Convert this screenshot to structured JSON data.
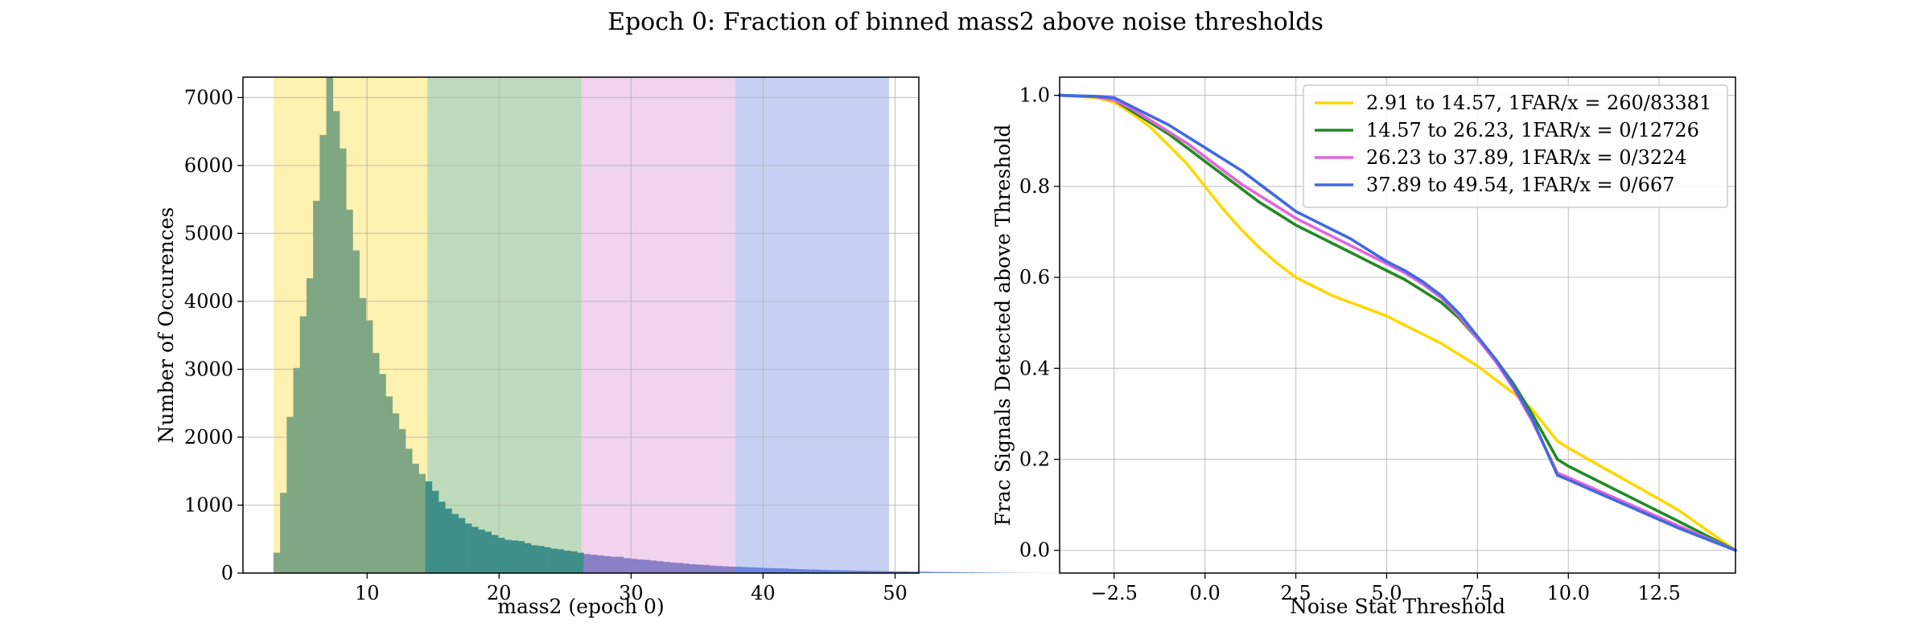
{
  "figure": {
    "title": "Epoch 0: Fraction of binned mass2 above noise thresholds"
  },
  "chart_data": [
    {
      "type": "bar",
      "subtype": "histogram",
      "title": "",
      "xlabel": "mass2 (epoch 0)",
      "ylabel": "Number of Occurences",
      "xlim": [
        0.6,
        51.8
      ],
      "ylim": [
        0,
        7300
      ],
      "xticks": [
        10,
        20,
        30,
        40,
        50
      ],
      "yticks": [
        0,
        1000,
        2000,
        3000,
        4000,
        5000,
        6000,
        7000
      ],
      "grid": true,
      "bins": {
        "start": 2.91,
        "width": 0.5,
        "counts": [
          300,
          1180,
          2300,
          3020,
          3780,
          4340,
          5480,
          6450,
          7350,
          6800,
          6250,
          5350,
          4750,
          4050,
          3720,
          3240,
          2930,
          2600,
          2350,
          2120,
          1830,
          1610,
          1460,
          1350,
          1210,
          1050,
          950,
          870,
          810,
          730,
          680,
          640,
          610,
          560,
          520,
          490,
          480,
          470,
          440,
          410,
          400,
          380,
          360,
          350,
          330,
          320,
          300,
          280,
          270,
          260,
          250,
          240,
          240,
          220,
          210,
          200,
          195,
          185,
          175,
          165,
          155,
          150,
          140,
          130,
          125,
          120,
          110,
          105,
          100,
          95,
          92,
          88,
          84,
          80,
          76,
          72,
          70,
          68,
          62,
          58,
          55,
          52,
          50,
          47,
          44,
          42,
          40,
          38,
          36,
          34,
          32,
          30,
          28,
          27,
          25,
          24,
          22,
          21,
          20,
          18,
          16,
          15,
          14,
          12,
          11,
          10,
          9,
          8,
          7,
          6,
          5,
          4,
          3,
          2,
          2,
          1,
          1,
          1,
          1
        ]
      },
      "mass_ranges": [
        {
          "low": 2.91,
          "high": 14.57,
          "band_color": "#fff2b0",
          "bar_color": "#80a784"
        },
        {
          "low": 14.57,
          "high": 26.23,
          "band_color": "#bedcbc",
          "bar_color": "#3f8f8a"
        },
        {
          "low": 26.23,
          "high": 37.89,
          "band_color": "#f1d3f0",
          "bar_color": "#8a80c8"
        },
        {
          "low": 37.89,
          "high": 49.54,
          "band_color": "#c5d0f3",
          "bar_color": "#6a86e0"
        }
      ]
    },
    {
      "type": "line",
      "title": "",
      "xlabel": "Noise Stat Threshold",
      "ylabel": "Frac Signals Detected above Threshold",
      "xlim": [
        -4.0,
        14.6
      ],
      "ylim": [
        -0.05,
        1.04
      ],
      "xticks": [
        -2.5,
        0.0,
        2.5,
        5.0,
        7.5,
        10.0,
        12.5
      ],
      "xtick_labels": [
        "−2.5",
        "0.0",
        "2.5",
        "5.0",
        "7.5",
        "10.0",
        "12.5"
      ],
      "yticks": [
        0.0,
        0.2,
        0.4,
        0.6,
        0.8,
        1.0
      ],
      "ytick_labels": [
        "0.0",
        "0.2",
        "0.4",
        "0.6",
        "0.8",
        "1.0"
      ],
      "grid": true,
      "legend_position": "top-right",
      "series": [
        {
          "name": "2.91 to 14.57, 1FAR/x = 260/83381",
          "color": "#ffd700",
          "x": [
            -4.0,
            -3.0,
            -2.5,
            -2.0,
            -1.5,
            -1.0,
            -0.5,
            0.0,
            0.5,
            1.0,
            1.5,
            2.0,
            2.5,
            3.0,
            3.5,
            4.0,
            4.5,
            5.0,
            5.5,
            6.0,
            6.5,
            7.0,
            7.5,
            8.0,
            8.5,
            9.0,
            9.7,
            10.0,
            11.0,
            12.0,
            13.0,
            14.6
          ],
          "y": [
            1.0,
            0.995,
            0.985,
            0.96,
            0.93,
            0.89,
            0.85,
            0.8,
            0.75,
            0.705,
            0.665,
            0.63,
            0.6,
            0.58,
            0.56,
            0.545,
            0.53,
            0.515,
            0.495,
            0.475,
            0.455,
            0.43,
            0.405,
            0.375,
            0.345,
            0.31,
            0.24,
            0.225,
            0.18,
            0.135,
            0.09,
            0.0
          ]
        },
        {
          "name": "14.57 to 26.23, 1FAR/x = 0/12726",
          "color": "#228b22",
          "x": [
            -4.0,
            -3.0,
            -2.5,
            -2.0,
            -1.5,
            -1.0,
            -0.5,
            0.0,
            0.5,
            1.0,
            1.5,
            2.0,
            2.5,
            3.0,
            3.5,
            4.0,
            4.5,
            5.0,
            5.5,
            6.0,
            6.5,
            7.0,
            7.5,
            8.0,
            8.5,
            9.0,
            9.7,
            10.0,
            11.0,
            12.0,
            13.0,
            14.6
          ],
          "y": [
            1.0,
            0.997,
            0.99,
            0.965,
            0.94,
            0.915,
            0.885,
            0.855,
            0.825,
            0.795,
            0.765,
            0.74,
            0.715,
            0.695,
            0.675,
            0.655,
            0.635,
            0.615,
            0.595,
            0.57,
            0.545,
            0.51,
            0.465,
            0.42,
            0.365,
            0.3,
            0.2,
            0.185,
            0.145,
            0.105,
            0.065,
            0.0
          ]
        },
        {
          "name": "26.23 to 37.89, 1FAR/x = 0/3224",
          "color": "#e066d8",
          "x": [
            -4.0,
            -3.0,
            -2.5,
            -2.0,
            -1.5,
            -1.0,
            -0.5,
            0.0,
            0.5,
            1.0,
            1.5,
            2.0,
            2.5,
            3.0,
            3.5,
            4.0,
            4.5,
            5.0,
            5.5,
            6.0,
            6.5,
            7.0,
            7.5,
            8.0,
            8.5,
            9.0,
            9.7,
            10.0,
            11.0,
            12.0,
            13.0,
            14.6
          ],
          "y": [
            1.0,
            0.997,
            0.99,
            0.97,
            0.945,
            0.92,
            0.895,
            0.865,
            0.835,
            0.805,
            0.78,
            0.755,
            0.73,
            0.71,
            0.69,
            0.67,
            0.65,
            0.63,
            0.61,
            0.585,
            0.555,
            0.515,
            0.465,
            0.415,
            0.355,
            0.285,
            0.17,
            0.16,
            0.125,
            0.09,
            0.055,
            0.0
          ]
        },
        {
          "name": "37.89 to 49.54, 1FAR/x = 0/667",
          "color": "#4169e1",
          "x": [
            -4.0,
            -3.0,
            -2.5,
            -2.0,
            -1.5,
            -1.0,
            -0.5,
            0.0,
            0.5,
            1.0,
            1.5,
            2.0,
            2.5,
            3.0,
            3.5,
            4.0,
            4.5,
            5.0,
            5.5,
            6.0,
            6.5,
            7.0,
            7.5,
            8.0,
            8.5,
            9.0,
            9.7,
            10.0,
            11.0,
            12.0,
            13.0,
            14.6
          ],
          "y": [
            1.0,
            0.998,
            0.995,
            0.975,
            0.955,
            0.935,
            0.91,
            0.885,
            0.86,
            0.835,
            0.805,
            0.775,
            0.745,
            0.725,
            0.705,
            0.685,
            0.66,
            0.635,
            0.615,
            0.59,
            0.56,
            0.52,
            0.47,
            0.42,
            0.36,
            0.29,
            0.165,
            0.155,
            0.12,
            0.085,
            0.05,
            0.0
          ]
        }
      ]
    }
  ]
}
